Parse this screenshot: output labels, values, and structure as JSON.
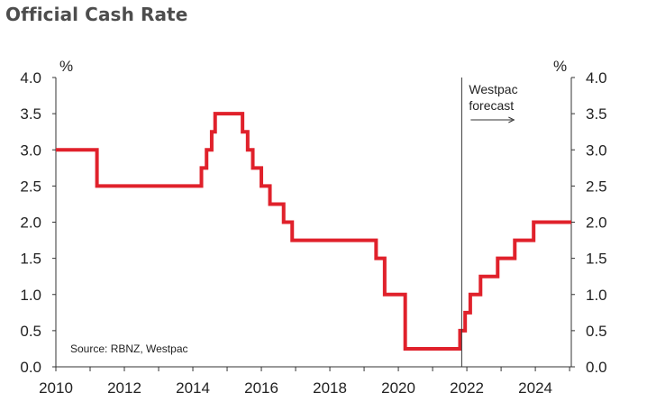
{
  "chart_data": {
    "type": "line",
    "title": "Official Cash Rate",
    "ylabel_left": "%",
    "ylabel_right": "%",
    "ylim": [
      0,
      4.0
    ],
    "yticks": [
      "0.0",
      "0.5",
      "1.0",
      "1.5",
      "2.0",
      "2.5",
      "3.0",
      "3.5",
      "4.0"
    ],
    "xlim": [
      2010,
      2025.05
    ],
    "xticks": [
      "2010",
      "2012",
      "2014",
      "2016",
      "2018",
      "2020",
      "2022",
      "2024"
    ],
    "series": [
      {
        "color": "#e0212b",
        "step": true,
        "x": [
          2010.0,
          2011.2,
          2014.25,
          2014.4,
          2014.55,
          2014.65,
          2015.45,
          2015.6,
          2015.75,
          2016.0,
          2016.25,
          2016.65,
          2016.9,
          2019.35,
          2019.6,
          2020.2,
          2021.8,
          2021.95,
          2022.1,
          2022.4,
          2022.9,
          2023.4,
          2023.95,
          2025.05
        ],
        "y": [
          3.0,
          2.5,
          2.75,
          3.0,
          3.25,
          3.5,
          3.25,
          3.0,
          2.75,
          2.5,
          2.25,
          2.0,
          1.75,
          1.5,
          1.0,
          0.25,
          0.5,
          0.75,
          1.0,
          1.25,
          1.5,
          1.75,
          2.0,
          2.0
        ]
      }
    ],
    "forecast_start": 2021.85,
    "forecast_label_line1": "Westpac",
    "forecast_label_line2": "forecast",
    "source": "Source: RBNZ, Westpac",
    "grid": false
  }
}
